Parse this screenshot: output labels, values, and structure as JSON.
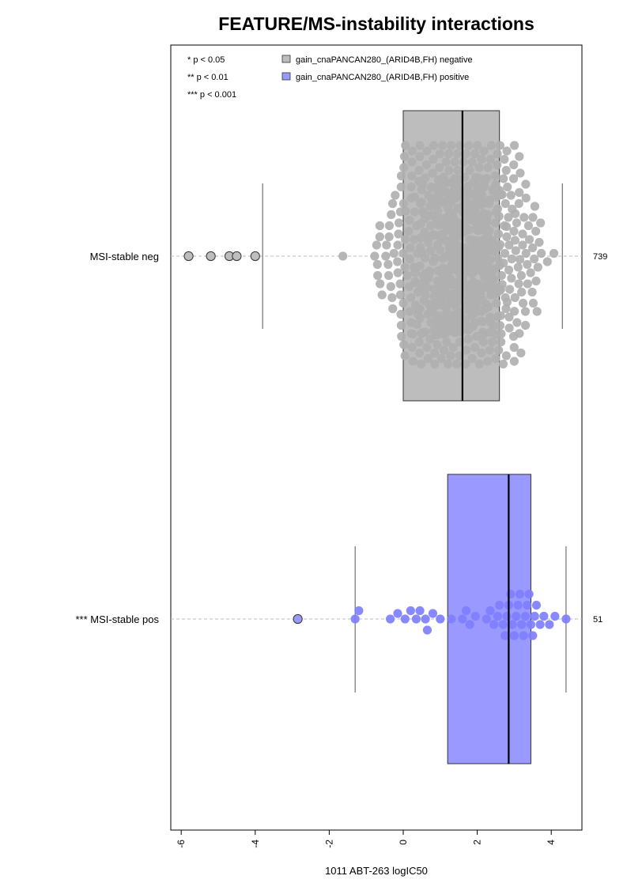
{
  "chart_data": {
    "type": "box-beeswarm",
    "title": "FEATURE/MS-instability interactions",
    "xlabel": "1011 ABT-263 logIC50",
    "ylabel": "",
    "xlim": [
      -6.3,
      4.9
    ],
    "x_ticks": [
      -6,
      -4,
      -2,
      0,
      2,
      4
    ],
    "x_tick_labels": [
      "-6",
      "-4",
      "-2",
      "0",
      "2",
      "4"
    ],
    "significance_legend": [
      "* p < 0.05",
      "** p < 0.01",
      "*** p < 0.001"
    ],
    "groups": [
      {
        "label": "MSI-stable neg",
        "n_label": "739",
        "legend": "gain_cnaPANCAN280_(ARID4B,FH) negative",
        "color": "#bdbdbd",
        "point_color": "#b0b0b0",
        "box": {
          "whisker_low": -3.8,
          "q1": 0.0,
          "median": 1.6,
          "q3": 2.6,
          "whisker_high": 4.3
        },
        "outliers": [
          -5.8,
          -5.2,
          -4.7,
          -4.5,
          -4.0
        ],
        "points_sample": [
          -3.5,
          -3.0,
          -2.5,
          -2.0,
          -1.5,
          -1.0,
          -0.5,
          0.0,
          0.5,
          1.0,
          1.5,
          2.0,
          2.5,
          3.0,
          3.5,
          4.0
        ]
      },
      {
        "label": "*** MSI-stable pos",
        "n_label": "51",
        "legend": "gain_cnaPANCAN280_(ARID4B,FH) positive",
        "color": "#9999ff",
        "point_color": "#7f7fff",
        "box": {
          "whisker_low": -1.3,
          "q1": 1.2,
          "median": 2.85,
          "q3": 3.45,
          "whisker_high": 4.4
        },
        "outliers": [
          -2.85
        ],
        "points": [
          -1.3,
          -1.2,
          -0.35,
          -0.15,
          0.05,
          0.2,
          0.35,
          0.45,
          0.6,
          0.65,
          0.8,
          1.0,
          1.3,
          1.6,
          1.7,
          1.8,
          1.95,
          2.25,
          2.35,
          2.45,
          2.55,
          2.6,
          2.7,
          2.75,
          2.8,
          2.85,
          2.9,
          2.95,
          3.0,
          3.05,
          3.1,
          3.15,
          3.2,
          3.25,
          3.3,
          3.35,
          3.4,
          3.45,
          3.5,
          3.55,
          3.6,
          3.7,
          3.8,
          3.95,
          4.1,
          4.4
        ]
      }
    ],
    "grid": false,
    "legend_position": "top-left"
  }
}
